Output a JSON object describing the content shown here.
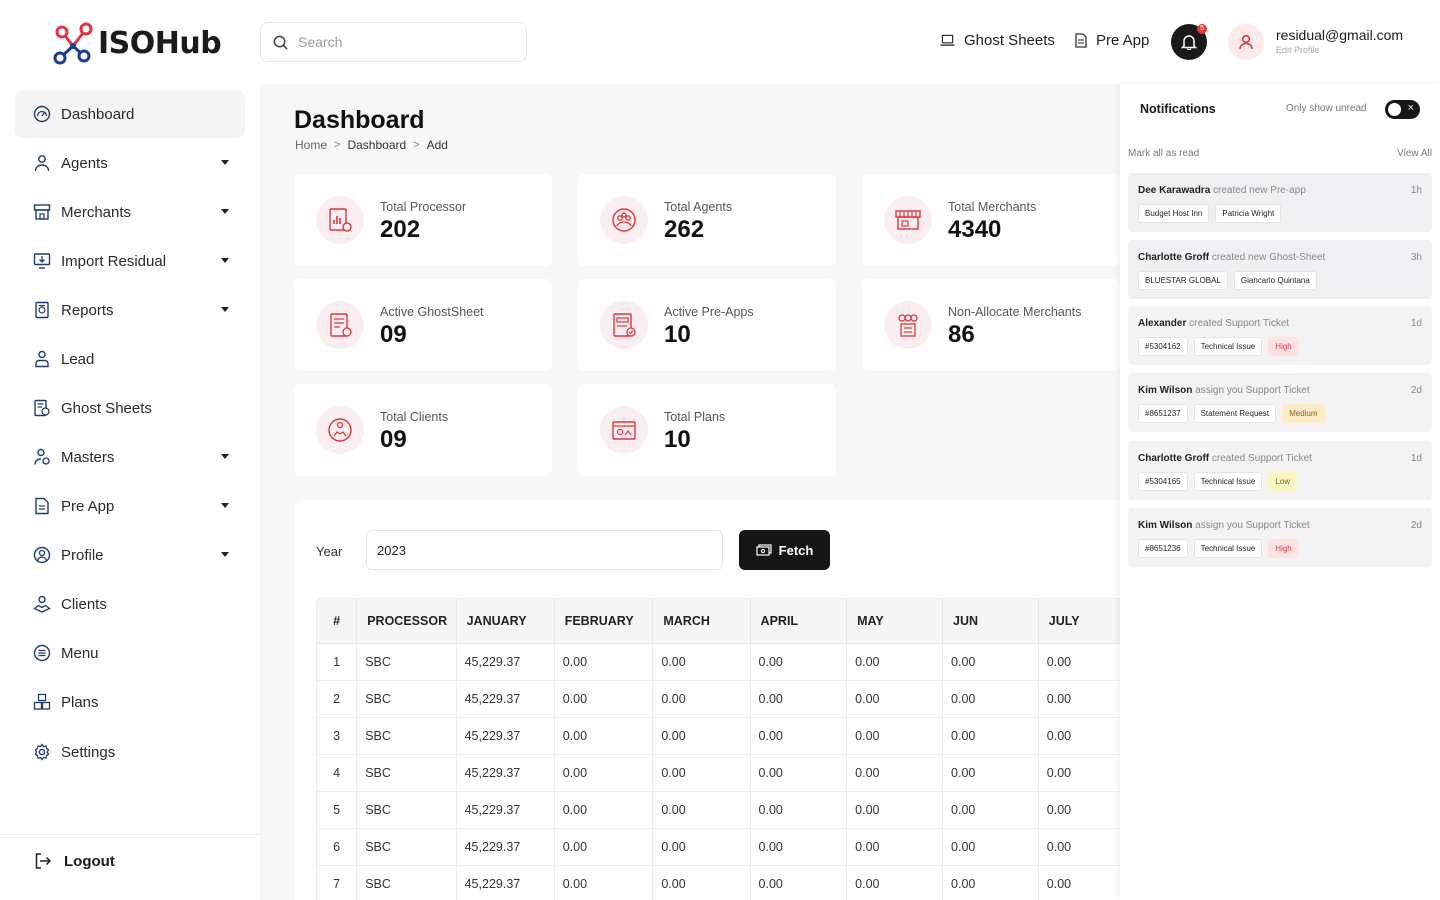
{
  "app": {
    "logo_text": "ISOHub"
  },
  "header": {
    "search_placeholder": "Search",
    "links": [
      {
        "label": "Ghost Sheets"
      },
      {
        "label": "Pre App"
      }
    ],
    "notification_count": "5",
    "user": {
      "email": "residual@gmail.com",
      "edit_label": "Edit Profile"
    }
  },
  "sidebar": {
    "items": [
      {
        "label": "Dashboard",
        "icon": "dashboard-icon",
        "active": true,
        "expandable": false
      },
      {
        "label": "Agents",
        "icon": "agents-icon",
        "expandable": true
      },
      {
        "label": "Merchants",
        "icon": "merchants-icon",
        "expandable": true
      },
      {
        "label": "Import Residual",
        "icon": "import-icon",
        "expandable": true
      },
      {
        "label": "Reports",
        "icon": "reports-icon",
        "expandable": true
      },
      {
        "label": "Lead",
        "icon": "lead-icon",
        "expandable": false
      },
      {
        "label": "Ghost Sheets",
        "icon": "ghost-sheets-icon",
        "expandable": false
      },
      {
        "label": "Masters",
        "icon": "masters-icon",
        "expandable": true
      },
      {
        "label": "Pre App",
        "icon": "pre-app-icon",
        "expandable": true
      },
      {
        "label": "Profile",
        "icon": "profile-icon",
        "expandable": true
      },
      {
        "label": "Clients",
        "icon": "clients-icon",
        "expandable": false
      },
      {
        "label": "Menu",
        "icon": "menu-icon",
        "expandable": false
      },
      {
        "label": "Plans",
        "icon": "plans-icon",
        "expandable": false
      },
      {
        "label": "Settings",
        "icon": "settings-icon",
        "expandable": false
      }
    ],
    "logout_label": "Logout"
  },
  "page": {
    "title": "Dashboard",
    "breadcrumb": [
      "Home",
      "Dashboard",
      "Add"
    ]
  },
  "stats": [
    {
      "label": "Total Processor",
      "value": "202"
    },
    {
      "label": "Total Agents",
      "value": "262"
    },
    {
      "label": "Total Merchants",
      "value": "4340"
    },
    {
      "label": "Active GhostSheet",
      "value": "09"
    },
    {
      "label": "Active Pre-Apps",
      "value": "10"
    },
    {
      "label": "Non-Allocate Merchants",
      "value": "86"
    },
    {
      "label": "Total Clients",
      "value": "09"
    },
    {
      "label": "Total Plans",
      "value": "10"
    }
  ],
  "filter": {
    "year_label": "Year",
    "year_value": "2023",
    "fetch_label": "Fetch"
  },
  "table": {
    "columns": [
      "#",
      "PROCESSOR",
      "JANUARY",
      "FEBRUARY",
      "MARCH",
      "APRIL",
      "MAY",
      "JUN",
      "JULY"
    ],
    "rows": [
      [
        "1",
        "SBC",
        "45,229.37",
        "0.00",
        "0.00",
        "0.00",
        "0.00",
        "0.00",
        "0.00"
      ],
      [
        "2",
        "SBC",
        "45,229.37",
        "0.00",
        "0.00",
        "0.00",
        "0.00",
        "0.00",
        "0.00"
      ],
      [
        "3",
        "SBC",
        "45,229.37",
        "0.00",
        "0.00",
        "0.00",
        "0.00",
        "0.00",
        "0.00"
      ],
      [
        "4",
        "SBC",
        "45,229.37",
        "0.00",
        "0.00",
        "0.00",
        "0.00",
        "0.00",
        "0.00"
      ],
      [
        "5",
        "SBC",
        "45,229.37",
        "0.00",
        "0.00",
        "0.00",
        "0.00",
        "0.00",
        "0.00"
      ],
      [
        "6",
        "SBC",
        "45,229.37",
        "0.00",
        "0.00",
        "0.00",
        "0.00",
        "0.00",
        "0.00"
      ],
      [
        "7",
        "SBC",
        "45,229.37",
        "0.00",
        "0.00",
        "0.00",
        "0.00",
        "0.00",
        "0.00"
      ]
    ]
  },
  "notifications": {
    "title": "Notifications",
    "only_unread_label": "Only show unread",
    "only_unread_on": true,
    "mark_all_label": "Mark all as read",
    "view_all_label": "View All",
    "items": [
      {
        "actor": "Dee Karawadra",
        "action": " created  new Pre-app",
        "time": "1h",
        "unread": true,
        "tags": [
          {
            "text": "Budget Host Inn"
          },
          {
            "text": "Patricia Wright"
          }
        ]
      },
      {
        "actor": "Charlotte Groff",
        "action": " created new Ghost-Sheet",
        "time": "3h",
        "unread": true,
        "tags": [
          {
            "text": "BLUESTAR GLOBAL"
          },
          {
            "text": "Giancarlo Quintana"
          }
        ]
      },
      {
        "actor": "Alexander",
        "action": " created Support Ticket",
        "time": "1d",
        "unread": false,
        "tags": [
          {
            "text": "#5304162"
          },
          {
            "text": "Technical Issue"
          },
          {
            "text": "High",
            "level": "high"
          }
        ]
      },
      {
        "actor": "Kim Wilson",
        "action": " assign you Support Ticket",
        "time": "2d",
        "unread": false,
        "tags": [
          {
            "text": "#8651237"
          },
          {
            "text": "Statement Request"
          },
          {
            "text": "Medium",
            "level": "medium"
          }
        ]
      },
      {
        "actor": "Charlotte Groff",
        "action": " created Support Ticket",
        "time": "1d",
        "unread": false,
        "tags": [
          {
            "text": "#5304165"
          },
          {
            "text": "Technical Issue"
          },
          {
            "text": "Low",
            "level": "low"
          }
        ]
      },
      {
        "actor": "Kim Wilson",
        "action": " assign you Support Ticket",
        "time": "2d",
        "unread": false,
        "tags": [
          {
            "text": "#8651236"
          },
          {
            "text": "Technical Issue"
          },
          {
            "text": "High",
            "level": "high"
          }
        ]
      }
    ]
  },
  "colors": {
    "accent": "#e0343f",
    "dark": "#161616",
    "card_icon_bg": "#fbeef0"
  }
}
